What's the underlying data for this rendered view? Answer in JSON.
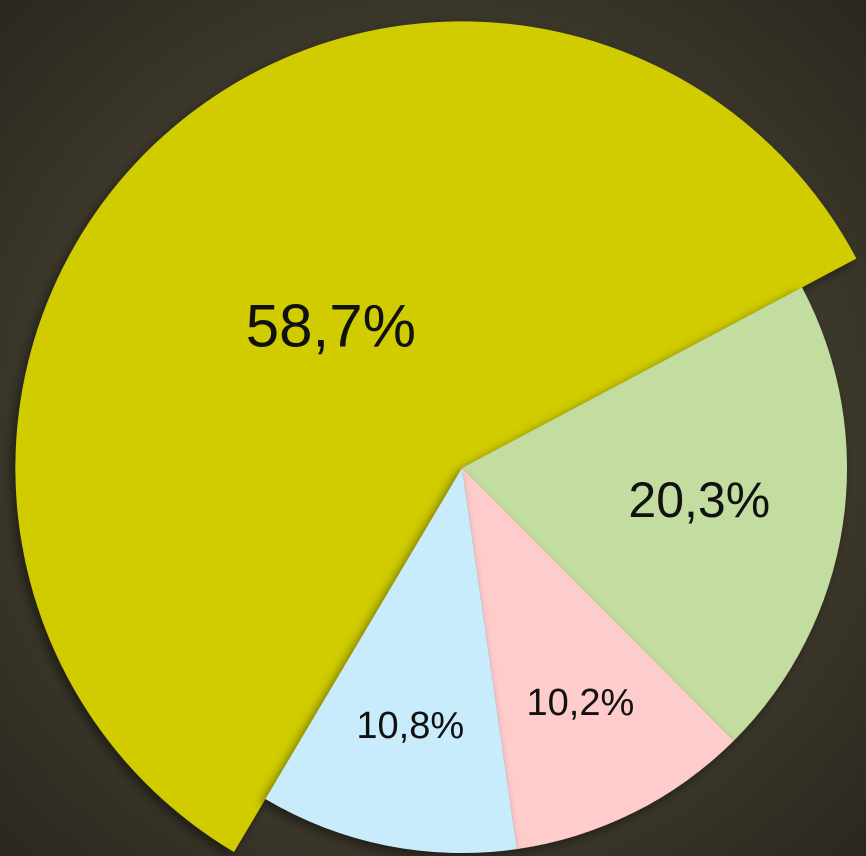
{
  "chart_data": {
    "type": "pie",
    "values": [
      58.7,
      20.3,
      10.2,
      10.8
    ],
    "value_labels": [
      "58,7%",
      "20,3%",
      "10,2%",
      "10,8%"
    ],
    "colors": [
      "#d0cc00",
      "#c3dda0",
      "#ffcccc",
      "#c8ecfc"
    ]
  }
}
